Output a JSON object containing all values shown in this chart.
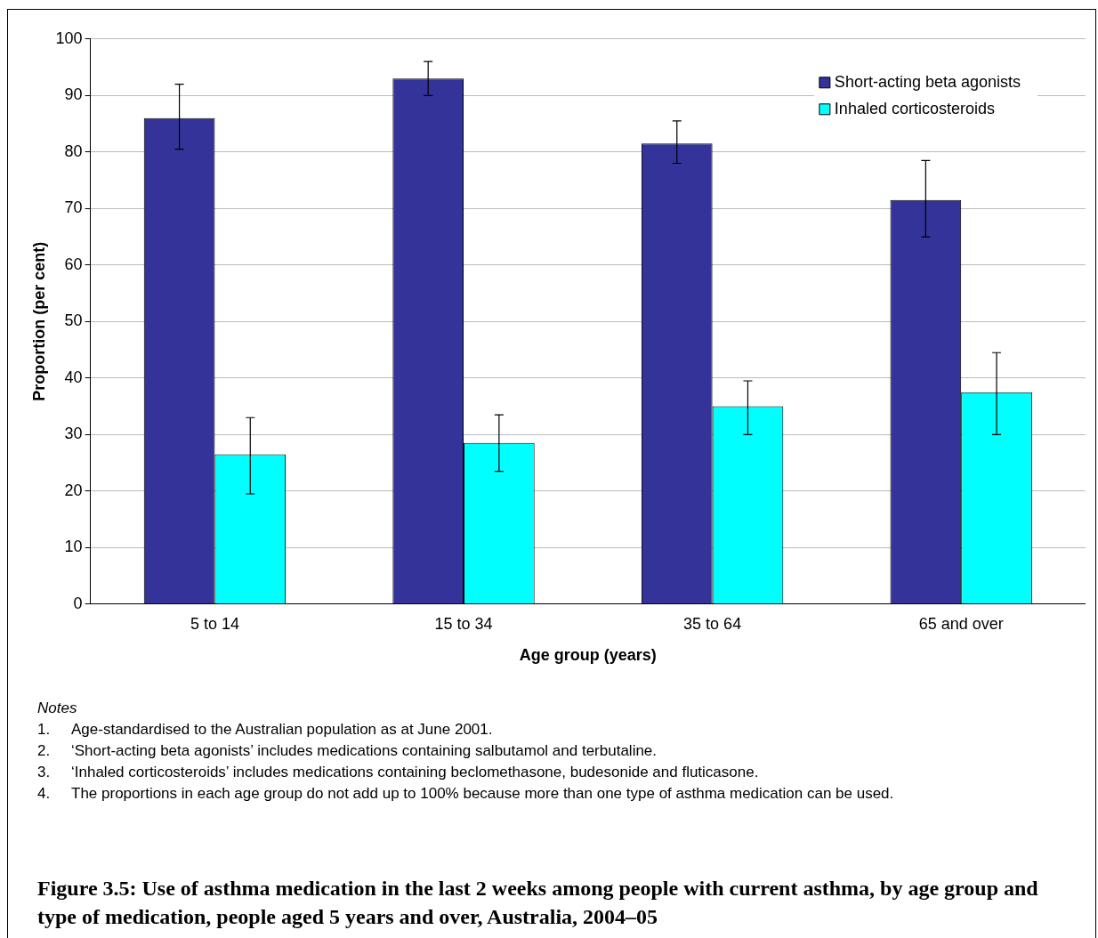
{
  "chart_data": {
    "type": "bar",
    "title": "Figure 3.5: Use of asthma medication in the last 2 weeks among people with current asthma, by age group and type of medication, people aged 5 years and over, Australia, 2004–05",
    "xlabel": "Age group (years)",
    "ylabel": "Proportion (per cent)",
    "categories": [
      "5 to 14",
      "15 to 34",
      "35 to 64",
      "65 and over"
    ],
    "series": [
      {
        "name": "Short-acting beta agonists",
        "color": "#333399",
        "values": [
          86,
          93,
          81.5,
          71.5
        ],
        "errors": [
          [
            80.5,
            92
          ],
          [
            90,
            96
          ],
          [
            78,
            85.5
          ],
          [
            65,
            78.5
          ]
        ]
      },
      {
        "name": "Inhaled corticosteroids",
        "color": "#00ffff",
        "values": [
          26.5,
          28.5,
          35,
          37.5
        ],
        "errors": [
          [
            19.5,
            33
          ],
          [
            23.5,
            33.5
          ],
          [
            30,
            39.5
          ],
          [
            30,
            44.5
          ]
        ]
      }
    ],
    "ylim": [
      0,
      100
    ],
    "yticks": [
      0,
      10,
      20,
      30,
      40,
      50,
      60,
      70,
      80,
      90,
      100
    ],
    "grid": "y",
    "legend": "top right",
    "annotations": [
      "Notes",
      "1. Age-standardised to the Australian population as at June 2001.",
      "2. ‘Short-acting beta agonists’ includes medications containing salbutamol and terbutaline.",
      "3. ‘Inhaled corticosteroids’ includes medications containing beclomethasone, budesonide and fluticasone.",
      "4. The proportions in each age group do not add up to 100% because more than one type of asthma medication can be used."
    ]
  }
}
